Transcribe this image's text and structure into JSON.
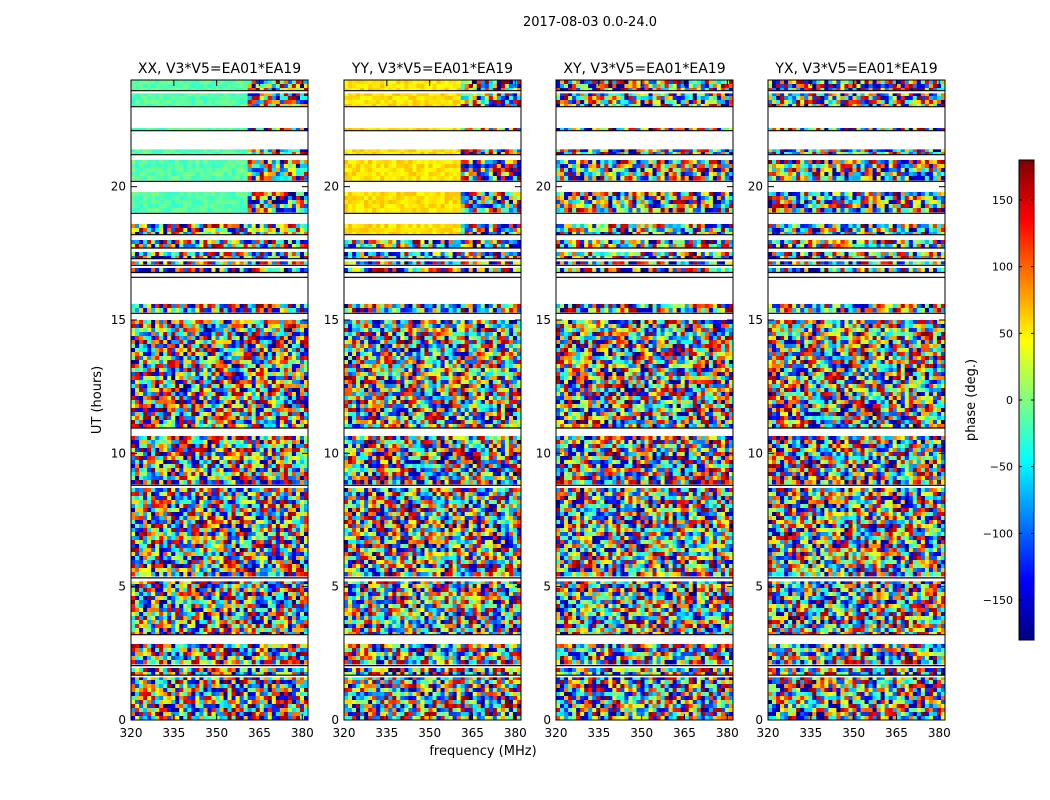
{
  "figure_title": "2017-08-03 0.0-24.0",
  "ylabel": "UT (hours)",
  "xlabel": "frequency (MHz)",
  "colorbar": {
    "label": "phase (deg.)",
    "range": [
      -180,
      180
    ],
    "ticks": [
      -150,
      -100,
      -50,
      0,
      50,
      100,
      150
    ],
    "tick_labels": [
      "−150",
      "−100",
      "−50",
      "0",
      "50",
      "100",
      "150"
    ],
    "colormap": "jet",
    "colors": [
      "#00007f",
      "#0000ff",
      "#007fff",
      "#00ffff",
      "#7fff7f",
      "#ffff00",
      "#ff7f00",
      "#ff0000",
      "#7f0000"
    ]
  },
  "chart_data": {
    "type": "heatmap",
    "title": "2017-08-03 0.0-24.0",
    "xlabel": "frequency (MHz)",
    "ylabel": "UT (hours)",
    "xlim": [
      320,
      382
    ],
    "ylim": [
      0,
      24
    ],
    "x_ticks": [
      320,
      335,
      350,
      365,
      380
    ],
    "y_ticks": [
      0,
      5,
      10,
      15,
      20
    ],
    "z_label": "phase (deg.)",
    "z_range": [
      -180,
      180
    ],
    "missing_data_ut_ranges": [
      [
        1.6,
        1.68
      ],
      [
        1.96,
        2.04
      ],
      [
        2.9,
        3.2
      ],
      [
        5.2,
        5.33
      ],
      [
        8.7,
        8.8
      ],
      [
        10.7,
        10.95
      ],
      [
        15.05,
        15.25
      ],
      [
        15.6,
        16.6
      ],
      [
        16.7,
        16.78
      ],
      [
        16.95,
        17.05
      ],
      [
        17.2,
        17.3
      ],
      [
        17.55,
        17.7
      ],
      [
        18.0,
        18.2
      ],
      [
        18.6,
        19.0
      ],
      [
        19.8,
        20.2
      ],
      [
        21.05,
        21.2
      ],
      [
        21.4,
        22.1
      ],
      [
        22.2,
        23.0
      ],
      [
        23.5,
        23.6
      ]
    ],
    "panels": [
      {
        "name": "XX",
        "title": "XX, V3*V5=EA01*EA19",
        "mean_phase_deg": -15,
        "flat_region_ut": [
          [
            10.7,
            11.0
          ],
          [
            18.6,
            24.0
          ]
        ],
        "flat_region_fmax_mhz": 361
      },
      {
        "name": "YY",
        "title": "YY, V3*V5=EA01*EA19",
        "mean_phase_deg": 55,
        "flat_region_ut": [
          [
            10.7,
            11.0
          ],
          [
            18.0,
            24.0
          ]
        ],
        "flat_region_fmax_mhz": 361
      },
      {
        "name": "XY",
        "title": "XY, V3*V5=EA01*EA19",
        "mean_phase_deg": null,
        "flat_region_ut": [],
        "flat_region_fmax_mhz": null
      },
      {
        "name": "YX",
        "title": "YX, V3*V5=EA01*EA19",
        "mean_phase_deg": null,
        "flat_region_ut": [],
        "flat_region_fmax_mhz": null
      }
    ]
  }
}
